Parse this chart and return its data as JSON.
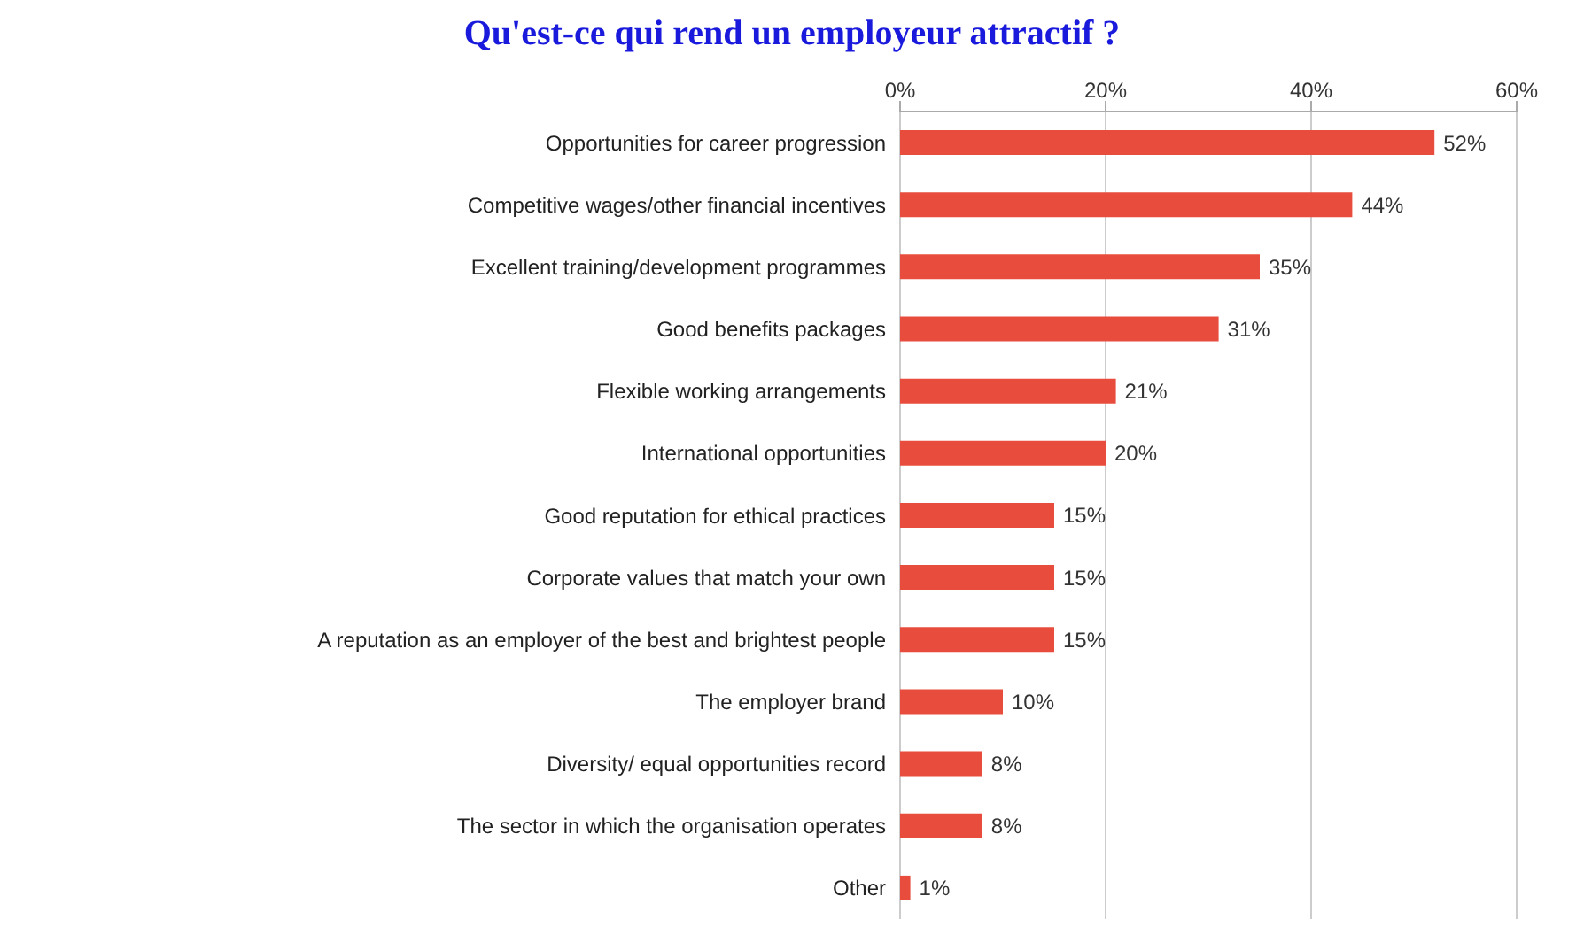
{
  "chart_data": {
    "type": "bar",
    "orientation": "horizontal",
    "title": "Qu'est-ce qui rend un employeur attractif ?",
    "categories": [
      "Opportunities for career progression",
      "Competitive wages/other financial incentives",
      "Excellent training/development programmes",
      "Good benefits packages",
      "Flexible working arrangements",
      "International opportunities",
      "Good reputation for ethical practices",
      "Corporate values that match your own",
      "A reputation as an employer of the best and brightest people",
      "The employer brand",
      "Diversity/ equal opportunities record",
      "The sector in which the organisation operates",
      "Other"
    ],
    "values": [
      52,
      44,
      35,
      31,
      21,
      20,
      15,
      15,
      15,
      10,
      8,
      8,
      1
    ],
    "value_labels": [
      "52%",
      "44%",
      "35%",
      "31%",
      "21%",
      "20%",
      "15%",
      "15%",
      "15%",
      "10%",
      "8%",
      "8%",
      "1%"
    ],
    "color": "#e84c3d",
    "xlim": [
      0,
      60
    ],
    "xticks": [
      {
        "value": 0,
        "label": "0%"
      },
      {
        "value": 20,
        "label": "20%"
      },
      {
        "value": 40,
        "label": "40%"
      },
      {
        "value": 60,
        "label": "60%"
      }
    ],
    "grid": "x"
  }
}
